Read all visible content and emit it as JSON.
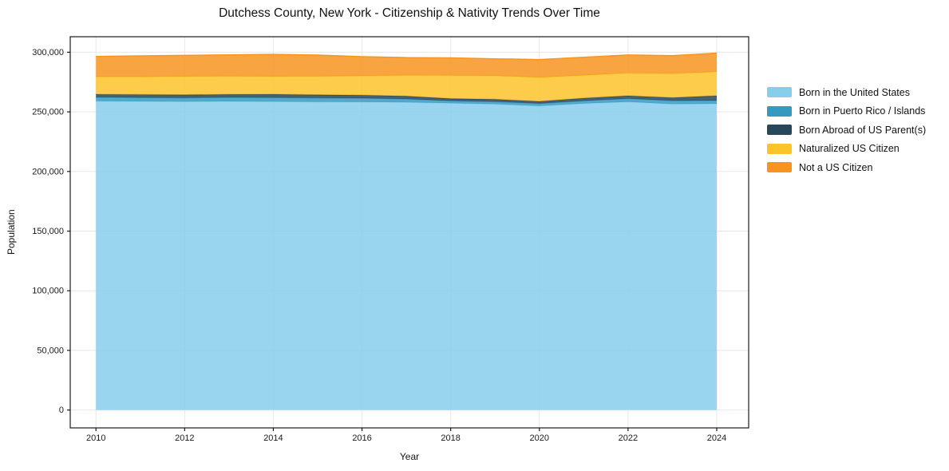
{
  "title": "Dutchess County, New York - Citizenship & Nativity Trends Over Time",
  "chart_data": {
    "type": "area",
    "stacked": true,
    "title": "Dutchess County, New York - Citizenship & Nativity Trends Over Time",
    "xlabel": "Year",
    "ylabel": "Population",
    "x": [
      2010,
      2011,
      2012,
      2013,
      2014,
      2015,
      2016,
      2017,
      2018,
      2019,
      2020,
      2021,
      2022,
      2023,
      2024
    ],
    "series": [
      {
        "name": "Born in the United States",
        "color": "#87ceeb",
        "values": [
          259000,
          258800,
          258600,
          258800,
          258600,
          258400,
          258300,
          258000,
          257300,
          256500,
          254900,
          257000,
          258400,
          256600,
          256800
        ]
      },
      {
        "name": "Born in Puerto Rico / Islands",
        "color": "#3799c0",
        "values": [
          3300,
          3200,
          3200,
          3300,
          3400,
          3300,
          3200,
          2800,
          2000,
          2100,
          2100,
          2300,
          2700,
          2800,
          2700
        ]
      },
      {
        "name": "Born Abroad of US Parent(s)",
        "color": "#29475a",
        "values": [
          2400,
          2500,
          2500,
          2500,
          2700,
          2600,
          2500,
          2400,
          1800,
          1900,
          1800,
          2200,
          2400,
          2500,
          4000
        ]
      },
      {
        "name": "Naturalized US Citizen",
        "color": "#fcc32a",
        "values": [
          14700,
          14900,
          15400,
          15300,
          15000,
          15500,
          16200,
          17500,
          19400,
          19800,
          20100,
          19200,
          19000,
          20200,
          20100
        ]
      },
      {
        "name": "Not a US Citizen",
        "color": "#f79420",
        "values": [
          17100,
          17600,
          17700,
          17900,
          18500,
          17800,
          16100,
          14800,
          14800,
          14200,
          15000,
          15100,
          15200,
          15000,
          15700
        ]
      }
    ],
    "xticks": [
      2010,
      2012,
      2014,
      2016,
      2018,
      2020,
      2022,
      2024
    ],
    "xtick_labels": [
      "2010",
      "2012",
      "2014",
      "2016",
      "2018",
      "2020",
      "2022",
      "2024"
    ],
    "yticks": [
      0,
      50000,
      100000,
      150000,
      200000,
      250000,
      300000
    ],
    "ytick_labels": [
      "0",
      "50,000",
      "100,000",
      "150,000",
      "200,000",
      "250,000",
      "300,000"
    ],
    "xlim": [
      2009.42,
      2024.72
    ],
    "ylim": [
      -15000,
      313000
    ],
    "grid": true,
    "legend_position": "right",
    "fill_opacity": 0.85,
    "grid_color": "#e8e8e8",
    "frame_color": "#1a1a1a",
    "tick_label_color": "#1a1a1a"
  }
}
